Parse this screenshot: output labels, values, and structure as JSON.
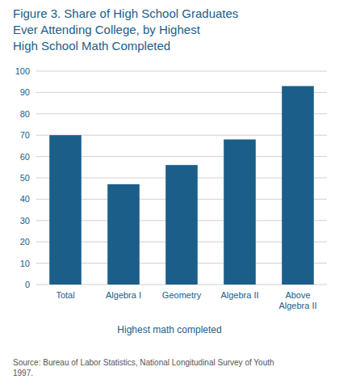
{
  "chart_data": {
    "type": "bar",
    "title": "Figure 3. Share of High School Graduates\nEver Attending College, by Highest\nHigh School Math Completed",
    "categories": [
      "Total",
      "Algebra I",
      "Geometry",
      "Algebra II",
      "Above\nAlgebra II"
    ],
    "values": [
      70,
      47,
      56,
      68,
      93
    ],
    "color": "#1b5e8a",
    "xlabel": "Highest math completed",
    "source": "Source: Bureau of Labor Statistics, National Longitudinal Survey of Youth\n1997.",
    "ylim": [
      0,
      100
    ],
    "yticks": [
      0,
      10,
      20,
      30,
      40,
      50,
      60,
      70,
      80,
      90,
      100
    ],
    "grid": true
  }
}
